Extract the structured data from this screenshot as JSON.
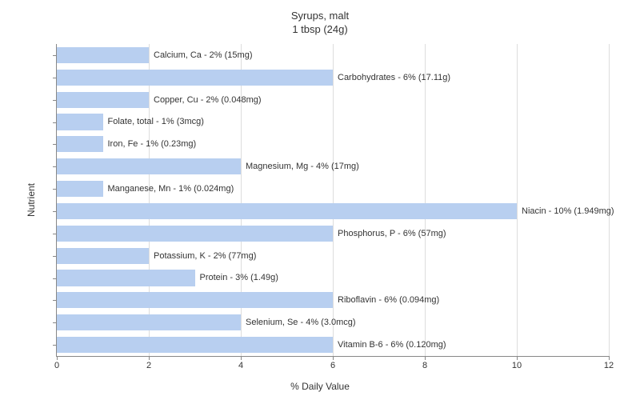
{
  "chart": {
    "type": "bar-horizontal",
    "title_line1": "Syrups, malt",
    "title_line2": "1 tbsp (24g)",
    "title_fontsize": 13,
    "ylabel": "Nutrient",
    "xlabel": "% Daily Value",
    "label_fontsize": 12,
    "xlim": [
      0,
      12
    ],
    "xtick_step": 2,
    "xticks": [
      0,
      2,
      4,
      6,
      8,
      10,
      12
    ],
    "background_color": "#ffffff",
    "grid_color": "#dddddd",
    "axis_color": "#888888",
    "bar_color": "#b8cff0",
    "text_color": "#333333",
    "bar_label_fontsize": 11,
    "tick_fontsize": 11,
    "nutrients": [
      {
        "name": "Calcium, Ca",
        "value": 2,
        "amount": "15mg",
        "label": "Calcium, Ca - 2% (15mg)"
      },
      {
        "name": "Carbohydrates",
        "value": 6,
        "amount": "17.11g",
        "label": "Carbohydrates - 6% (17.11g)"
      },
      {
        "name": "Copper, Cu",
        "value": 2,
        "amount": "0.048mg",
        "label": "Copper, Cu - 2% (0.048mg)"
      },
      {
        "name": "Folate, total",
        "value": 1,
        "amount": "3mcg",
        "label": "Folate, total - 1% (3mcg)"
      },
      {
        "name": "Iron, Fe",
        "value": 1,
        "amount": "0.23mg",
        "label": "Iron, Fe - 1% (0.23mg)"
      },
      {
        "name": "Magnesium, Mg",
        "value": 4,
        "amount": "17mg",
        "label": "Magnesium, Mg - 4% (17mg)"
      },
      {
        "name": "Manganese, Mn",
        "value": 1,
        "amount": "0.024mg",
        "label": "Manganese, Mn - 1% (0.024mg)"
      },
      {
        "name": "Niacin",
        "value": 10,
        "amount": "1.949mg",
        "label": "Niacin - 10% (1.949mg)"
      },
      {
        "name": "Phosphorus, P",
        "value": 6,
        "amount": "57mg",
        "label": "Phosphorus, P - 6% (57mg)"
      },
      {
        "name": "Potassium, K",
        "value": 2,
        "amount": "77mg",
        "label": "Potassium, K - 2% (77mg)"
      },
      {
        "name": "Protein",
        "value": 3,
        "amount": "1.49g",
        "label": "Protein - 3% (1.49g)"
      },
      {
        "name": "Riboflavin",
        "value": 6,
        "amount": "0.094mg",
        "label": "Riboflavin - 6% (0.094mg)"
      },
      {
        "name": "Selenium, Se",
        "value": 4,
        "amount": "3.0mcg",
        "label": "Selenium, Se - 4% (3.0mcg)"
      },
      {
        "name": "Vitamin B-6",
        "value": 6,
        "amount": "0.120mg",
        "label": "Vitamin B-6 - 6% (0.120mg)"
      }
    ]
  }
}
